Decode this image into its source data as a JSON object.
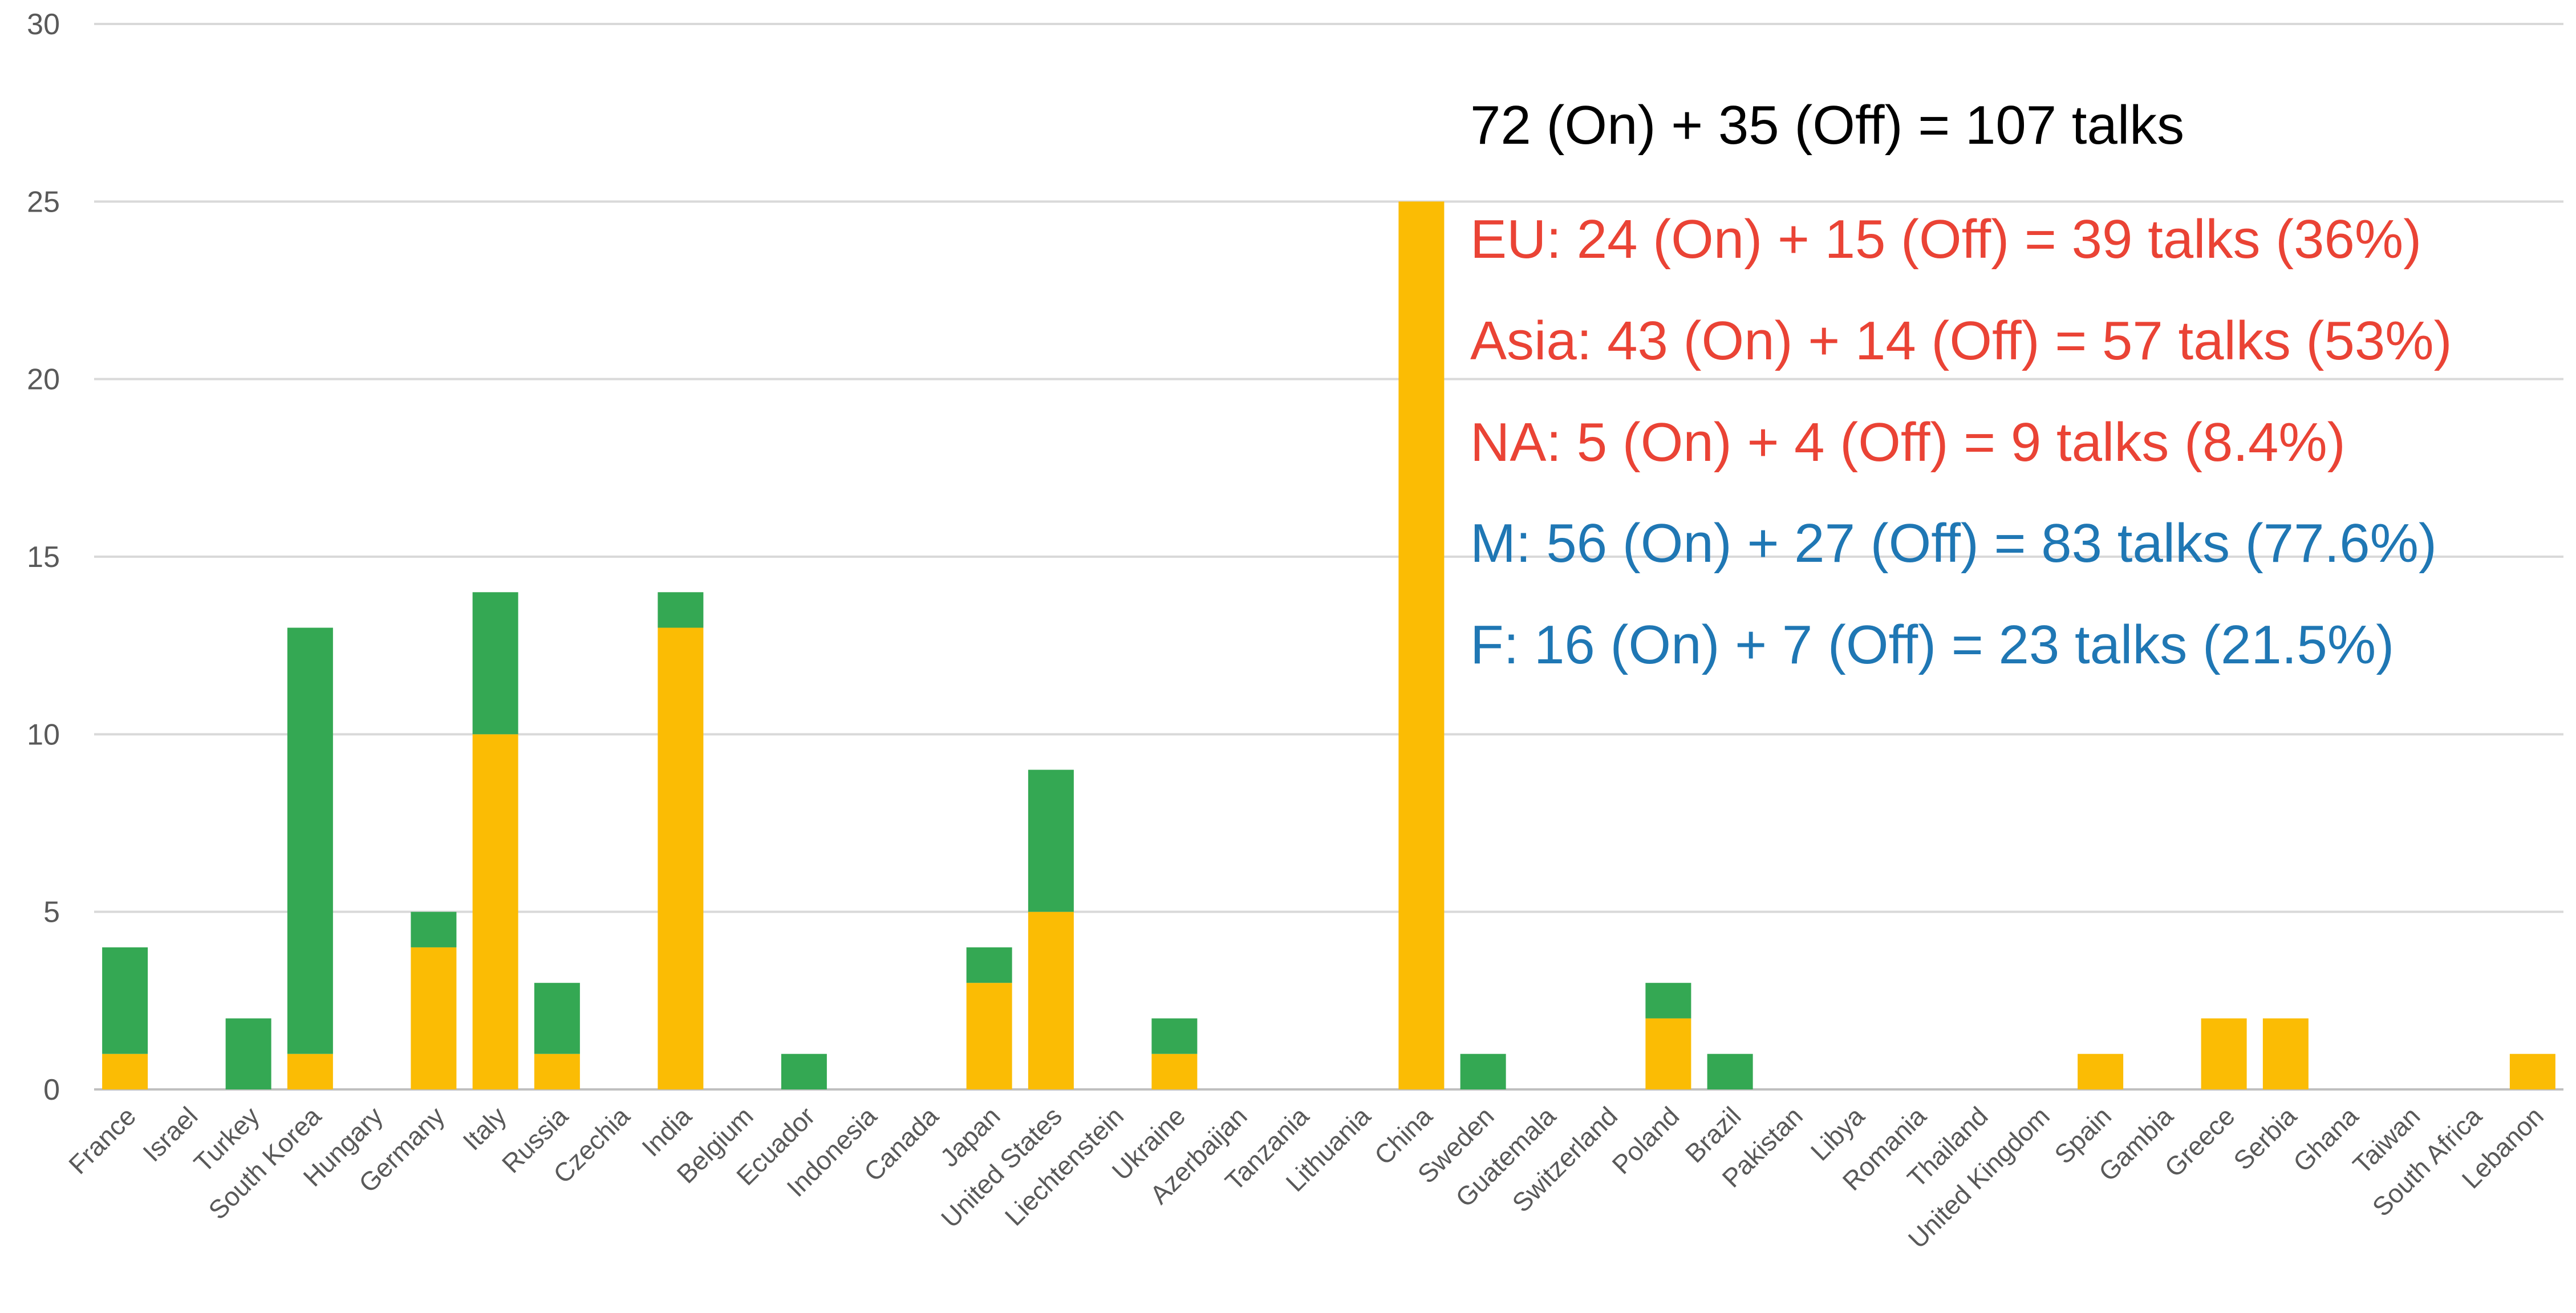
{
  "chart_data": {
    "type": "bar",
    "stacked": true,
    "grid": true,
    "legend": "none",
    "ylim": [
      0,
      30
    ],
    "yticks": [
      0,
      5,
      10,
      15,
      20,
      25,
      30
    ],
    "categories": [
      "France",
      "Israel",
      "Turkey",
      "South Korea",
      "Hungary",
      "Germany",
      "Italy",
      "Russia",
      "Czechia",
      "India",
      "Belgium",
      "Ecuador",
      "Indonesia",
      "Canada",
      "Japan",
      "United States",
      "Liechtenstein",
      "Ukraine",
      "Azerbaijan",
      "Tanzania",
      "Lithuania",
      "China",
      "Sweden",
      "Guatemala",
      "Switzerland",
      "Poland",
      "Brazil",
      "Pakistan",
      "Libya",
      "Romania",
      "Thailand",
      "United Kingdom",
      "Spain",
      "Gambia",
      "Greece",
      "Serbia",
      "Ghana",
      "Taiwan",
      "South Africa",
      "Lebanon"
    ],
    "series": [
      {
        "color": "#fbbc04",
        "values": [
          1,
          0,
          0,
          1,
          0,
          4,
          10,
          1,
          0,
          13,
          0,
          0,
          0,
          0,
          3,
          5,
          0,
          1,
          0,
          0,
          0,
          25,
          0,
          0,
          0,
          2,
          0,
          0,
          0,
          0,
          0,
          0,
          1,
          0,
          2,
          2,
          0,
          0,
          0,
          1
        ]
      },
      {
        "color": "#34a853",
        "values": [
          3,
          0,
          2,
          12,
          0,
          1,
          4,
          2,
          0,
          1,
          0,
          1,
          0,
          0,
          1,
          4,
          0,
          1,
          0,
          0,
          0,
          0,
          1,
          0,
          0,
          1,
          1,
          0,
          0,
          0,
          0,
          0,
          0,
          0,
          0,
          0,
          0,
          0,
          0,
          0
        ]
      }
    ],
    "annotations": [
      {
        "text": "72 (On) + 35 (Off) = 107 talks",
        "color": "#000000"
      },
      {
        "text": "EU: 24 (On) + 15 (Off) = 39 talks (36%)",
        "color": "#ea4335"
      },
      {
        "text": "Asia: 43 (On) + 14 (Off) = 57 talks (53%)",
        "color": "#ea4335"
      },
      {
        "text": "NA: 5 (On) + 4 (Off) = 9 talks (8.4%)",
        "color": "#ea4335"
      },
      {
        "text": "M: 56 (On) + 27 (Off) = 83 talks (77.6%)",
        "color": "#1f77b4"
      },
      {
        "text": "F: 16 (On) + 7 (Off) = 23 talks (21.5%)",
        "color": "#1f77b4"
      }
    ]
  }
}
